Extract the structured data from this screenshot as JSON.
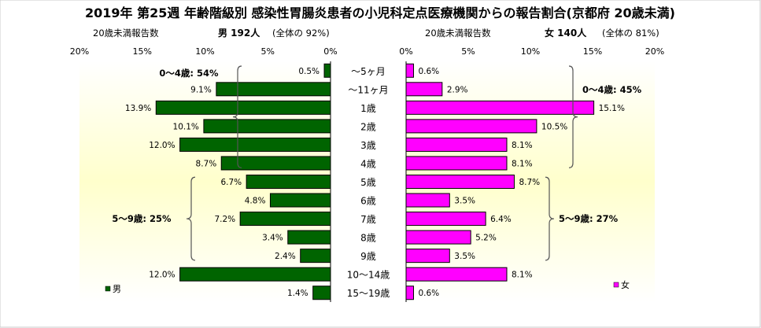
{
  "chart_data": {
    "type": "bar",
    "title": "2019年 第25週 年齢階級別 感染性胃腸炎患者の小児科定点医療機関からの報告割合(京都府 20歳未満)",
    "categories": [
      "～5ヶ月",
      "～11ヶ月",
      "1歳",
      "2歳",
      "3歳",
      "4歳",
      "5歳",
      "6歳",
      "7歳",
      "8歳",
      "9歳",
      "10～14歳",
      "15～19歳"
    ],
    "xlim": [
      0,
      20
    ],
    "xticks": [
      "0%",
      "5%",
      "10%",
      "15%",
      "20%"
    ],
    "grid": false,
    "panels": [
      {
        "side": "left",
        "caption": "20歳未満報告数",
        "count_label": "男 192人",
        "share_label": "(全体の 92%)",
        "series": {
          "name": "男",
          "color": "#006400",
          "values": [
            0.5,
            9.1,
            13.9,
            10.1,
            12.0,
            8.7,
            6.7,
            4.8,
            7.2,
            3.4,
            2.4,
            12.0,
            1.4
          ]
        },
        "value_labels": [
          "0.5%",
          "9.1%",
          "13.9%",
          "10.1%",
          "12.0%",
          "8.7%",
          "6.7%",
          "4.8%",
          "7.2%",
          "3.4%",
          "2.4%",
          "12.0%",
          "1.4%"
        ],
        "groups": [
          {
            "label": "0～4歳: 54%",
            "from": 0,
            "to": 5
          },
          {
            "label": "5～9歳: 25%",
            "from": 6,
            "to": 10
          }
        ],
        "legend": "男"
      },
      {
        "side": "right",
        "caption": "20歳未満報告数",
        "count_label": "女 140人",
        "share_label": "(全体の 81%)",
        "series": {
          "name": "女",
          "color": "#FF00FF",
          "values": [
            0.6,
            2.9,
            15.1,
            10.5,
            8.1,
            8.1,
            8.7,
            3.5,
            6.4,
            5.2,
            3.5,
            8.1,
            0.6
          ]
        },
        "value_labels": [
          "0.6%",
          "2.9%",
          "15.1%",
          "10.5%",
          "8.1%",
          "8.1%",
          "8.7%",
          "3.5%",
          "6.4%",
          "5.2%",
          "3.5%",
          "8.1%",
          "0.6%"
        ],
        "groups": [
          {
            "label": "0～4歳: 45%",
            "from": 0,
            "to": 5
          },
          {
            "label": "5～9歳: 27%",
            "from": 6,
            "to": 10
          }
        ],
        "legend": "女"
      }
    ]
  }
}
